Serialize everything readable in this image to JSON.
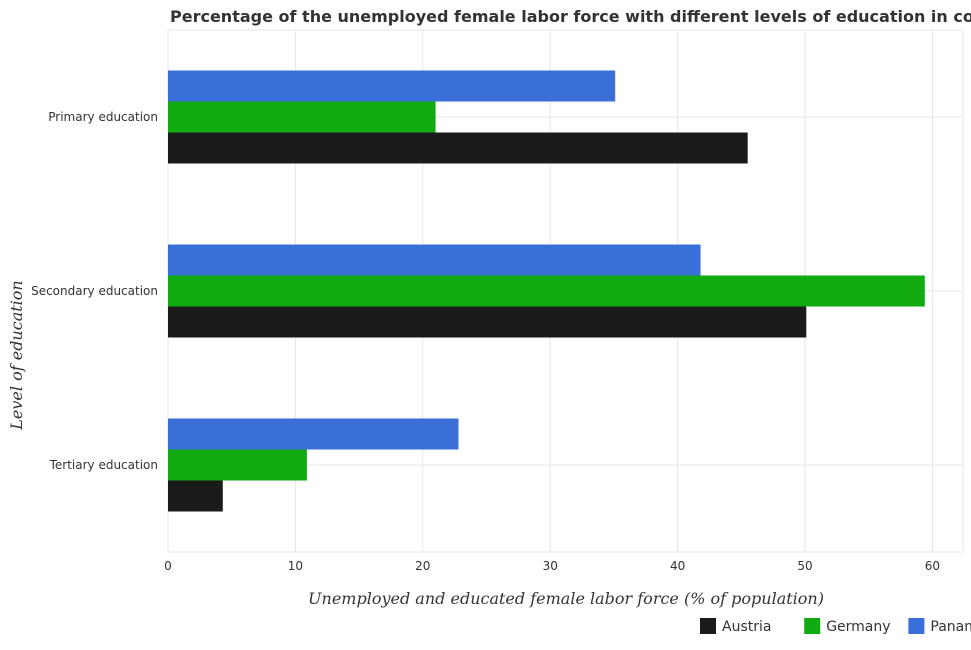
{
  "chart_data": {
    "type": "bar",
    "orientation": "horizontal",
    "title": "Percentage of the unemployed female labor force with different levels of education in countries",
    "xlabel": "Unemployed and educated female labor force (% of population)",
    "ylabel": "Level of education",
    "categories": [
      "Primary education",
      "Secondary education",
      "Tertiary education"
    ],
    "series": [
      {
        "name": "Austria",
        "color": "#1a1a1a",
        "values": [
          45.5,
          50.1,
          4.3
        ]
      },
      {
        "name": "Germany",
        "color": "#11aa11",
        "values": [
          21.0,
          59.4,
          10.9
        ]
      },
      {
        "name": "Panama",
        "color": "#3a6fd8",
        "values": [
          35.1,
          41.8,
          22.8
        ]
      }
    ],
    "xticks": [
      0,
      10,
      20,
      30,
      40,
      50,
      60
    ],
    "xlim": [
      0,
      62.4
    ],
    "grid": true,
    "legend_position": "bottom-right"
  }
}
